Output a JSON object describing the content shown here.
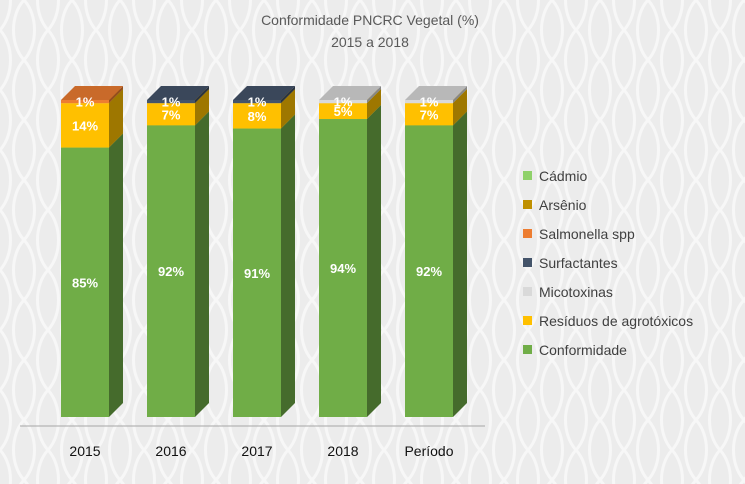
{
  "chart_data": {
    "type": "bar",
    "stacked": true,
    "three_d": true,
    "title": "Conformidade  PNCRC Vegetal (%)",
    "subtitle": "2015 a 2018",
    "categories": [
      "2015",
      "2016",
      "2017",
      "2018",
      "Período"
    ],
    "ylim": [
      0,
      100
    ],
    "grid": false,
    "legend_position": "right",
    "series": [
      {
        "name": "Conformidade",
        "color": "#70ad47",
        "values": [
          85,
          92,
          91,
          94,
          92
        ]
      },
      {
        "name": "Resíduos de agrotóxicos",
        "color": "#ffc000",
        "values": [
          14,
          7,
          8,
          5,
          7
        ]
      },
      {
        "name": "Micotoxinas",
        "color": "#d9d9d9",
        "values": [
          0,
          0,
          0,
          1,
          1
        ]
      },
      {
        "name": "Surfactantes",
        "color": "#44546a",
        "values": [
          0,
          1,
          1,
          0,
          0
        ]
      },
      {
        "name": "Salmonella spp",
        "color": "#ed7d31",
        "values": [
          1,
          0,
          0,
          0,
          0
        ]
      },
      {
        "name": "Arsênio",
        "color": "#bf9000",
        "values": [
          0,
          0,
          0,
          0,
          0
        ]
      },
      {
        "name": "Cádmio",
        "color": "#8fd16a",
        "values": [
          0,
          0,
          0,
          0,
          0
        ]
      }
    ],
    "data_labels": [
      [
        "85%",
        "92%",
        "91%",
        "94%",
        "92%"
      ],
      [
        "14%",
        "7%",
        "8%",
        "5%",
        "7%"
      ],
      [
        "",
        "",
        "",
        "1%",
        "1%"
      ],
      [
        "",
        "1%",
        "1%",
        "",
        ""
      ],
      [
        "1%",
        "",
        "",
        "",
        ""
      ],
      [
        "",
        "",
        "",
        "",
        ""
      ],
      [
        "",
        "",
        "",
        "",
        ""
      ]
    ],
    "legend_order": [
      "Cádmio",
      "Arsênio",
      "Salmonella spp",
      "Surfactantes",
      "Micotoxinas",
      "Resíduos de agrotóxicos",
      "Conformidade"
    ]
  }
}
